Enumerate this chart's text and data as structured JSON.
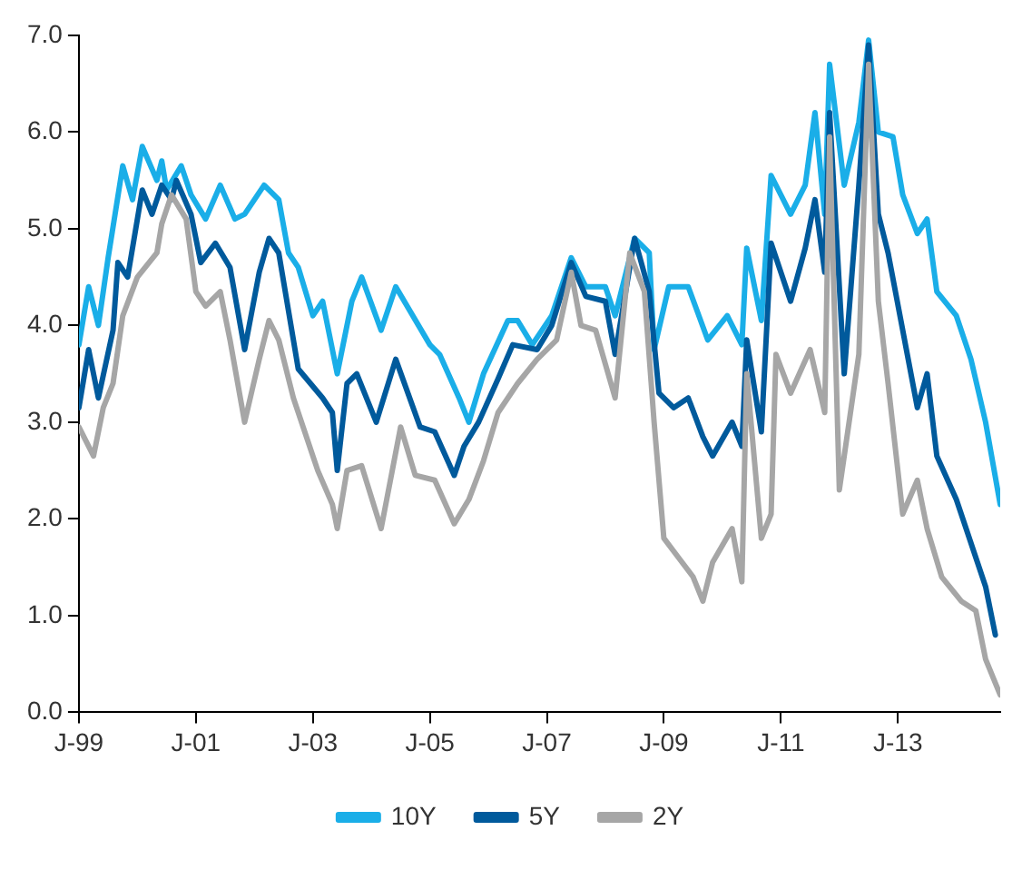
{
  "chart_data": {
    "type": "line",
    "xlim": [
      "1999-01",
      "2014-10"
    ],
    "xticks": [
      {
        "value": "1999-01",
        "label": "J-99"
      },
      {
        "value": "2001-01",
        "label": "J-01"
      },
      {
        "value": "2003-01",
        "label": "J-03"
      },
      {
        "value": "2005-01",
        "label": "J-05"
      },
      {
        "value": "2007-01",
        "label": "J-07"
      },
      {
        "value": "2009-01",
        "label": "J-09"
      },
      {
        "value": "2011-01",
        "label": "J-11"
      },
      {
        "value": "2013-01",
        "label": "J-13"
      }
    ],
    "ylim": [
      0,
      7
    ],
    "yticks": [
      {
        "value": 0,
        "label": "0.0"
      },
      {
        "value": 1,
        "label": "1.0"
      },
      {
        "value": 2,
        "label": "2.0"
      },
      {
        "value": 3,
        "label": "3.0"
      },
      {
        "value": 4,
        "label": "4.0"
      },
      {
        "value": 5,
        "label": "5.0"
      },
      {
        "value": 6,
        "label": "6.0"
      },
      {
        "value": 7,
        "label": "7.0"
      }
    ],
    "grid": false,
    "legend": "bottom",
    "marker": "none",
    "line_style": "solid",
    "series": [
      {
        "name": "10Y",
        "color": "#1aaee8",
        "x": [
          "1999-01",
          "1999-03",
          "1999-05",
          "1999-07",
          "1999-10",
          "1999-12",
          "2000-02",
          "2000-05",
          "2000-06",
          "2000-07",
          "2000-10",
          "2000-12",
          "2001-03",
          "2001-06",
          "2001-09",
          "2001-11",
          "2002-03",
          "2002-06",
          "2002-08",
          "2002-10",
          "2003-01",
          "2003-03",
          "2003-06",
          "2003-09",
          "2003-11",
          "2004-03",
          "2004-06",
          "2005-01",
          "2005-03",
          "2005-07",
          "2005-09",
          "2005-12",
          "2006-05",
          "2006-07",
          "2006-10",
          "2007-02",
          "2007-06",
          "2007-09",
          "2008-01",
          "2008-03",
          "2008-07",
          "2008-10",
          "2008-11",
          "2009-02",
          "2009-06",
          "2009-10",
          "2010-02",
          "2010-05",
          "2010-06",
          "2010-09",
          "2010-11",
          "2011-03",
          "2011-06",
          "2011-08",
          "2011-10",
          "2011-11",
          "2012-02",
          "2012-05",
          "2012-07",
          "2012-09",
          "2012-12",
          "2013-02",
          "2013-05",
          "2013-07",
          "2013-09",
          "2014-01",
          "2014-04",
          "2014-07",
          "2014-10"
        ],
        "values": [
          3.8,
          4.4,
          4.0,
          4.7,
          5.65,
          5.3,
          5.85,
          5.5,
          5.7,
          5.4,
          5.65,
          5.35,
          5.1,
          5.45,
          5.1,
          5.15,
          5.45,
          5.3,
          4.75,
          4.6,
          4.1,
          4.25,
          3.5,
          4.25,
          4.5,
          3.95,
          4.4,
          3.8,
          3.7,
          3.25,
          3.0,
          3.5,
          4.05,
          4.05,
          3.8,
          4.1,
          4.7,
          4.4,
          4.4,
          4.1,
          4.9,
          4.75,
          3.75,
          4.4,
          4.4,
          3.85,
          4.1,
          3.8,
          4.8,
          4.05,
          5.55,
          5.15,
          5.45,
          6.2,
          5.15,
          6.7,
          5.45,
          6.1,
          6.95,
          6.0,
          5.95,
          5.35,
          4.95,
          5.1,
          4.35,
          4.1,
          3.65,
          3.0,
          2.15
        ]
      },
      {
        "name": "5Y",
        "color": "#005a9c",
        "x": [
          "1999-01",
          "1999-03",
          "1999-05",
          "1999-08",
          "1999-09",
          "1999-11",
          "2000-02",
          "2000-04",
          "2000-06",
          "2000-08",
          "2000-09",
          "2000-12",
          "2001-02",
          "2001-05",
          "2001-08",
          "2001-11",
          "2002-02",
          "2002-04",
          "2002-06",
          "2002-09",
          "2002-10",
          "2003-03",
          "2003-05",
          "2003-06",
          "2003-08",
          "2003-10",
          "2004-02",
          "2004-06",
          "2004-11",
          "2005-02",
          "2005-06",
          "2005-08",
          "2005-11",
          "2006-03",
          "2006-06",
          "2006-11",
          "2007-02",
          "2007-06",
          "2007-09",
          "2008-01",
          "2008-03",
          "2008-07",
          "2008-10",
          "2008-12",
          "2009-03",
          "2009-06",
          "2009-09",
          "2009-11",
          "2010-03",
          "2010-05",
          "2010-06",
          "2010-09",
          "2010-11",
          "2011-03",
          "2011-06",
          "2011-08",
          "2011-10",
          "2011-11",
          "2012-02",
          "2012-05",
          "2012-07",
          "2012-09",
          "2012-11",
          "2013-02",
          "2013-05",
          "2013-07",
          "2013-09",
          "2014-01",
          "2014-05",
          "2014-07",
          "2014-09"
        ],
        "values": [
          3.15,
          3.75,
          3.25,
          3.95,
          4.65,
          4.5,
          5.4,
          5.15,
          5.45,
          5.3,
          5.5,
          5.15,
          4.65,
          4.85,
          4.6,
          3.75,
          4.55,
          4.9,
          4.75,
          3.85,
          3.55,
          3.25,
          3.1,
          2.5,
          3.4,
          3.5,
          3.0,
          3.65,
          2.95,
          2.9,
          2.45,
          2.75,
          3.0,
          3.45,
          3.8,
          3.75,
          4.0,
          4.65,
          4.3,
          4.25,
          3.7,
          4.9,
          4.35,
          3.3,
          3.15,
          3.25,
          2.85,
          2.65,
          3.0,
          2.75,
          3.85,
          2.9,
          4.85,
          4.25,
          4.8,
          5.3,
          4.55,
          6.2,
          3.5,
          5.45,
          6.9,
          5.15,
          4.75,
          3.95,
          3.15,
          3.5,
          2.65,
          2.2,
          1.6,
          1.3,
          0.8
        ]
      },
      {
        "name": "2Y",
        "color": "#a6a6a6",
        "x": [
          "1999-01",
          "1999-04",
          "1999-06",
          "1999-08",
          "1999-10",
          "2000-01",
          "2000-05",
          "2000-06",
          "2000-08",
          "2000-11",
          "2001-01",
          "2001-03",
          "2001-06",
          "2001-08",
          "2001-11",
          "2002-02",
          "2002-04",
          "2002-06",
          "2002-09",
          "2003-02",
          "2003-05",
          "2003-06",
          "2003-08",
          "2003-11",
          "2004-03",
          "2004-07",
          "2004-10",
          "2005-02",
          "2005-06",
          "2005-09",
          "2005-12",
          "2006-03",
          "2006-07",
          "2006-11",
          "2007-03",
          "2007-06",
          "2007-08",
          "2007-11",
          "2008-03",
          "2008-06",
          "2008-09",
          "2008-11",
          "2009-01",
          "2009-04",
          "2009-07",
          "2009-09",
          "2009-11",
          "2010-03",
          "2010-05",
          "2010-06",
          "2010-09",
          "2010-11",
          "2010-12",
          "2011-03",
          "2011-07",
          "2011-10",
          "2011-11",
          "2012-01",
          "2012-05",
          "2012-07",
          "2012-09",
          "2012-11",
          "2013-02",
          "2013-05",
          "2013-07",
          "2013-10",
          "2014-02",
          "2014-05",
          "2014-07",
          "2014-10"
        ],
        "values": [
          2.95,
          2.65,
          3.15,
          3.4,
          4.1,
          4.5,
          4.75,
          5.05,
          5.35,
          5.1,
          4.35,
          4.2,
          4.35,
          3.85,
          3.0,
          3.65,
          4.05,
          3.85,
          3.25,
          2.5,
          2.15,
          1.9,
          2.5,
          2.55,
          1.9,
          2.95,
          2.45,
          2.4,
          1.95,
          2.2,
          2.6,
          3.1,
          3.4,
          3.65,
          3.85,
          4.55,
          4.0,
          3.95,
          3.25,
          4.75,
          4.35,
          3.0,
          1.8,
          1.6,
          1.4,
          1.15,
          1.55,
          1.9,
          1.35,
          3.5,
          1.8,
          2.05,
          3.7,
          3.3,
          3.75,
          3.1,
          5.95,
          2.3,
          3.7,
          6.7,
          4.25,
          3.4,
          2.05,
          2.4,
          1.9,
          1.4,
          1.15,
          1.05,
          0.55,
          0.18
        ]
      }
    ]
  }
}
